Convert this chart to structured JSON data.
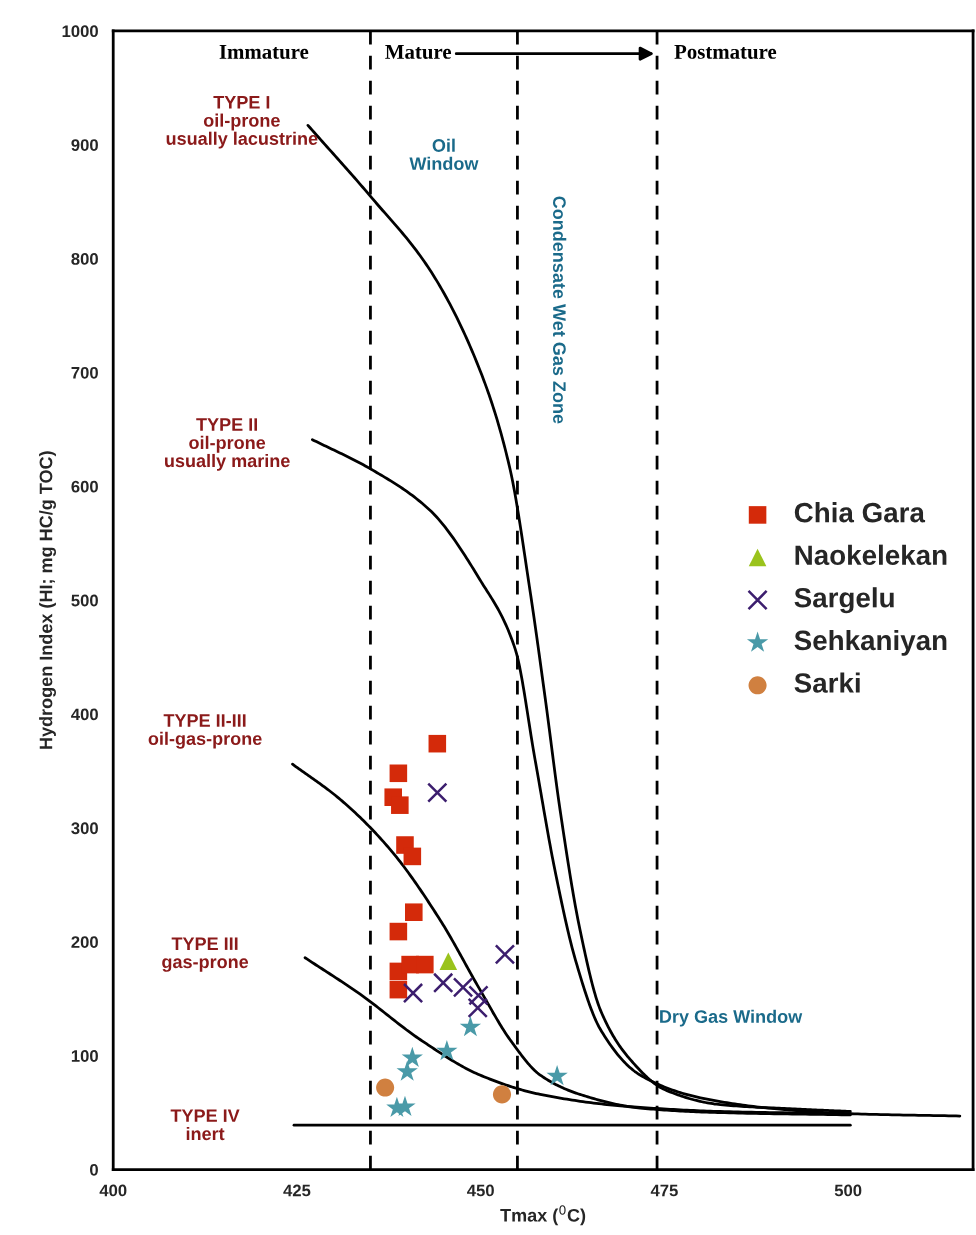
{
  "chart_data": {
    "type": "scatter",
    "xlabel": "Tmax ($^{0}$C)",
    "ylabel": "Hydrogen Index (HI; mg HC/g TOC)",
    "xlim": [
      400,
      517
    ],
    "ylim": [
      0,
      1000
    ],
    "xticks": [
      400,
      425,
      450,
      475,
      500
    ],
    "yticks": [
      0,
      100,
      200,
      300,
      400,
      500,
      600,
      700,
      800,
      900,
      1000
    ],
    "grid": false,
    "legend": "right",
    "series": [
      {
        "type": "line",
        "color": "#000000",
        "marker": "none",
        "x": [
          426.5,
          435.1,
          443.1,
          449.9,
          454.0,
          456.7,
          458.8,
          460.8,
          463.5,
          466.3,
          470.3,
          475.1,
          482.6,
          493.5,
          500.3
        ],
        "values": [
          917,
          854,
          790,
          702,
          615,
          509,
          413,
          316,
          211,
          140,
          97,
          70,
          57,
          53,
          51
        ]
      },
      {
        "type": "line",
        "color": "#000000",
        "marker": "none",
        "x": [
          427.1,
          435.1,
          443.1,
          449.9,
          454.7,
          457.4,
          460.1,
          462.9,
          466.3,
          471.7,
          479.9,
          490.7,
          500.3,
          515.2
        ],
        "values": [
          641,
          615,
          579,
          518,
          457,
          360,
          263,
          184,
          123,
          83,
          63,
          53,
          49,
          47
        ]
      },
      {
        "type": "line",
        "color": "#000000",
        "marker": "none",
        "x": [
          424.4,
          430.9,
          437.7,
          444.5,
          449.9,
          454.0,
          458.1,
          463.5,
          471.7,
          482.6,
          500.3
        ],
        "values": [
          356,
          325,
          281,
          219,
          158,
          114,
          83,
          66,
          54,
          50,
          48
        ]
      },
      {
        "type": "line",
        "color": "#000000",
        "marker": "none",
        "x": [
          426.1,
          433.6,
          441.8,
          449.9,
          458.1,
          469.0,
          482.6,
          500.3
        ],
        "values": [
          186,
          154,
          114,
          83,
          66,
          56,
          51,
          49
        ]
      },
      {
        "type": "line",
        "color": "#000000",
        "marker": "none",
        "x": [
          424.6,
          500.3
        ],
        "values": [
          39,
          39
        ]
      },
      {
        "name": "Chia Gara",
        "color": "#d42a0a",
        "marker": "square",
        "x": [
          444.1,
          438.8,
          438.1,
          439.0,
          439.7,
          440.7,
          440.9,
          438.8,
          438.8,
          438.8,
          440.4,
          442.4
        ],
        "values": [
          374,
          348,
          327,
          320,
          285,
          275,
          226,
          209,
          158,
          174,
          180,
          180
        ]
      },
      {
        "name": "Naokelekan",
        "color": "#9ac31c",
        "marker": "triangle",
        "x": [
          445.6
        ],
        "values": [
          183
        ]
      },
      {
        "name": "Sargelu",
        "color": "#3c1e6e",
        "marker": "cross",
        "x": [
          444.1,
          453.3,
          440.8,
          444.9,
          447.6,
          449.7,
          449.6
        ],
        "values": [
          331,
          189,
          155,
          164,
          160,
          153,
          142
        ]
      },
      {
        "name": "Sehkaniyan",
        "color": "#4a9aa8",
        "marker": "star",
        "x": [
          448.6,
          445.4,
          440.7,
          440.0,
          438.6,
          439.7,
          460.4
        ],
        "values": [
          125,
          104,
          98,
          86,
          54,
          55,
          82
        ]
      },
      {
        "name": "Sarki",
        "color": "#d08040",
        "marker": "circle",
        "x": [
          437.0,
          452.9
        ],
        "values": [
          72,
          66
        ]
      }
    ],
    "ref_lines": [
      {
        "axis": "x",
        "value": 435,
        "line_style": "dashed",
        "color": "#000000"
      },
      {
        "axis": "x",
        "value": 455,
        "line_style": "dashed",
        "color": "#000000"
      },
      {
        "axis": "x",
        "value": 474,
        "line_style": "dashed",
        "color": "#000000"
      }
    ],
    "annotations": [
      "Immature",
      "Mature",
      "Postmature",
      "Oil\nWindow",
      "Condensate Wet Gas Zone",
      "Dry Gas Window",
      "TYPE I\noil-prone\nusually lacustrine",
      "TYPE II\noil-prone\nusually marine",
      "TYPE II-III\noil-gas-prone",
      "TYPE III\ngas-prone",
      "TYPE IV\ninert"
    ]
  }
}
